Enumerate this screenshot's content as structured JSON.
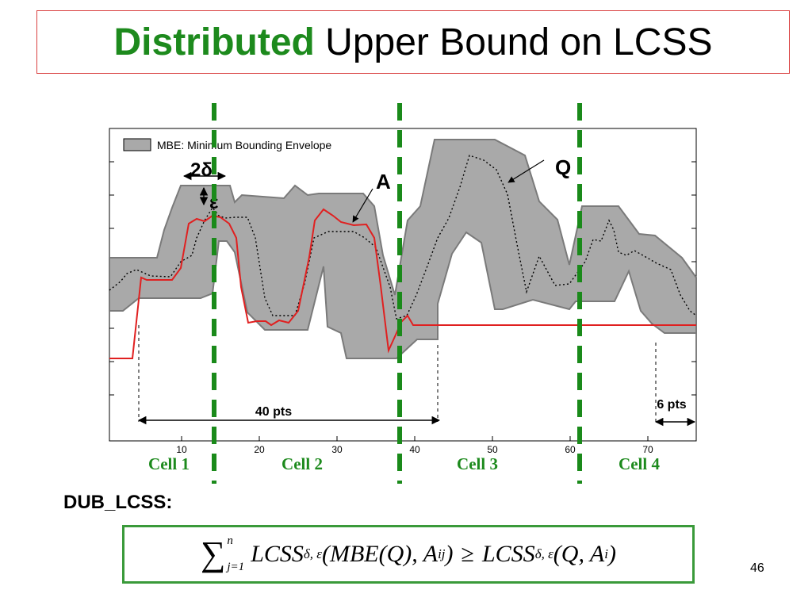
{
  "title": {
    "highlight": "Distributed",
    "rest": " Upper Bound on LCSS"
  },
  "legend": {
    "label": "MBE: Minimum Bounding Envelope"
  },
  "annotations": {
    "two_delta": "2δ",
    "epsilon": "ε",
    "A": "A",
    "Q": "Q",
    "pts40": "40 pts",
    "pts6": "6 pts"
  },
  "x_ticks": [
    "10",
    "20",
    "30",
    "40",
    "50",
    "60",
    "70"
  ],
  "cells": [
    "Cell 1",
    "Cell 2",
    "Cell 3",
    "Cell 4"
  ],
  "dub": {
    "label": "DUB_LCSS:"
  },
  "formula": {
    "sum": "∑",
    "upper": "n",
    "lower": "j=1",
    "lhs_name": "LCSS",
    "lhs_sub": "δ, ε",
    "lhs_args": "(MBE(Q), A",
    "lhs_arg_sub": "ij",
    "lhs_close": ")",
    "geq": "≥",
    "rhs_name": "LCSS",
    "rhs_sub": "δ, ε",
    "rhs_args": "(Q, A",
    "rhs_arg_sub": "i",
    "rhs_close": ")"
  },
  "page_number": "46",
  "colors": {
    "title_green": "#1d8a1d",
    "divider_green": "#1a8a1a",
    "series_A": "#e02020",
    "envelope": "#a9a9a9"
  }
}
